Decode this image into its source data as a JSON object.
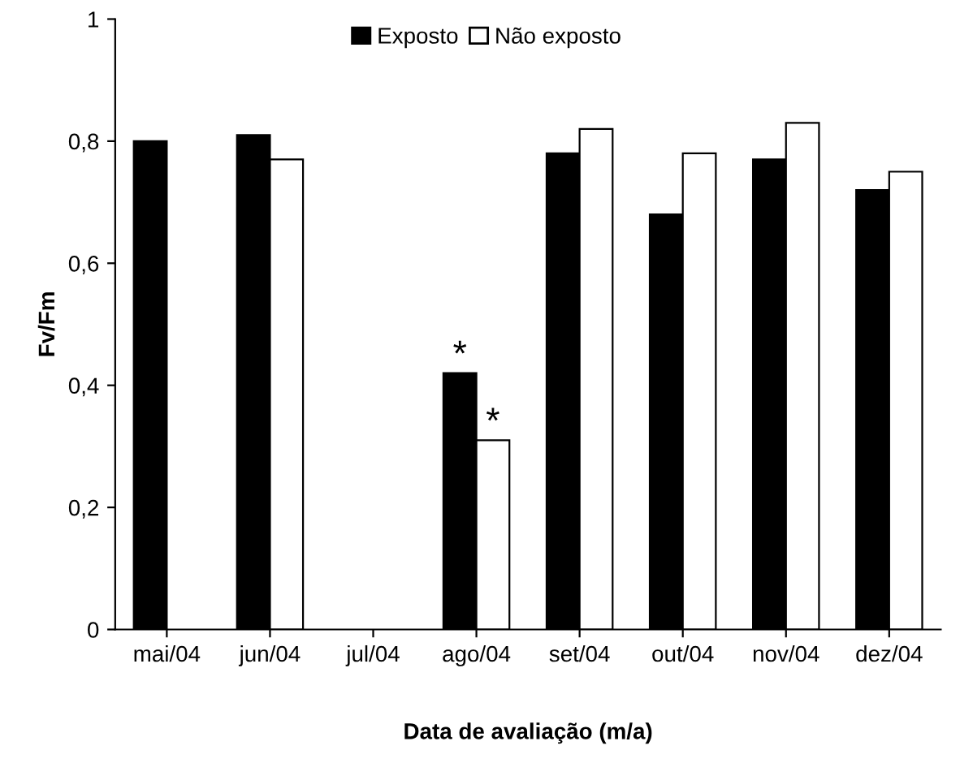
{
  "chart_data": {
    "type": "bar",
    "xlabel": "Data de avaliação (m/a)",
    "ylabel": "Fv/Fm",
    "categories": [
      "mai/04",
      "jun/04",
      "jul/04",
      "ago/04",
      "set/04",
      "out/04",
      "nov/04",
      "dez/04"
    ],
    "series": [
      {
        "name": "Exposto",
        "color": "#000000",
        "values": [
          0.8,
          0.81,
          null,
          0.42,
          0.78,
          0.68,
          0.77,
          0.72
        ]
      },
      {
        "name": "Não exposto",
        "color": "#ffffff",
        "values": [
          null,
          0.77,
          null,
          0.31,
          0.82,
          0.78,
          0.83,
          0.75
        ]
      }
    ],
    "ylim": [
      0,
      1
    ],
    "yticks": [
      0,
      {
        "value": 0.2,
        "label": "0,2"
      },
      {
        "value": 0.4,
        "label": "0,4"
      },
      {
        "value": 0.6,
        "label": "0,6"
      },
      {
        "value": 0.8,
        "label": "0,8"
      },
      1
    ],
    "annotations": [
      {
        "text": "*",
        "x": "ago/04",
        "y": 0.42
      },
      {
        "text": "*",
        "x": "ago/04",
        "y": 0.31
      }
    ],
    "grid": false,
    "legend": "top"
  }
}
